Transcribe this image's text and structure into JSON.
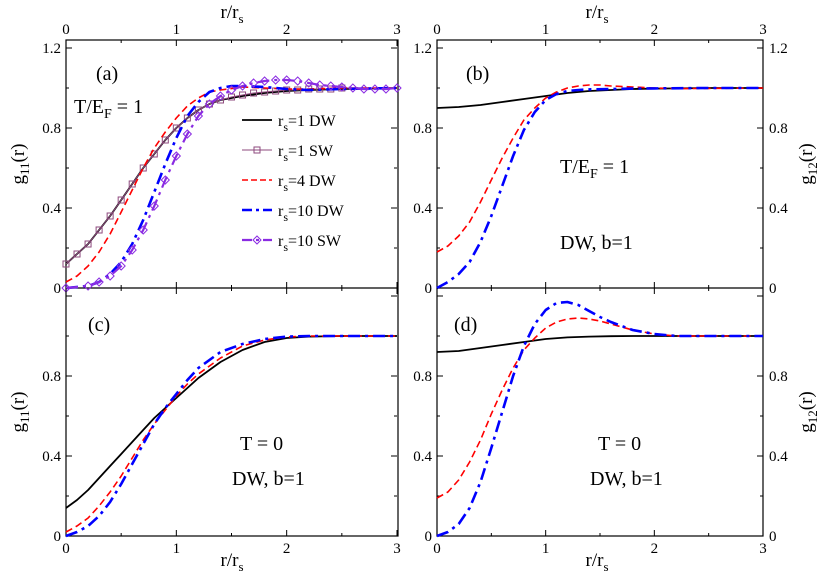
{
  "chart_data": {
    "type": "line",
    "figure": "Pair correlation functions g11(r) and g12(r) versus r/rs",
    "x_axis": {
      "label": "r/r",
      "label_sub": "s",
      "ticks": [
        "0",
        "1",
        "2",
        "3"
      ],
      "range": [
        0,
        3
      ]
    },
    "y_ticks": [
      "0",
      "0.4",
      "0.8",
      "1.2"
    ],
    "panels": [
      {
        "id": "a",
        "tag": "(a)",
        "ylabel": {
          "main": "g",
          "sub": "11",
          "tail": "(r)"
        },
        "ylim": [
          0,
          1.24
        ],
        "annotation": [
          "T/E",
          "F",
          " = 1"
        ],
        "legend": [
          {
            "pre": "r",
            "sub": "s",
            "post": "=1  DW"
          },
          {
            "pre": "r",
            "sub": "s",
            "post": "=1  SW"
          },
          {
            "pre": "r",
            "sub": "s",
            "post": "=4  DW"
          },
          {
            "pre": "r",
            "sub": "s",
            "post": "=10 DW"
          },
          {
            "pre": "r",
            "sub": "s",
            "post": "=10 SW"
          }
        ],
        "series": [
          {
            "name": "rs=1 DW",
            "color": "#000000",
            "style": "solid",
            "x": [
              0,
              0.1,
              0.2,
              0.3,
              0.4,
              0.5,
              0.6,
              0.7,
              0.8,
              0.9,
              1.0,
              1.1,
              1.2,
              1.3,
              1.4,
              1.6,
              1.8,
              2.0,
              2.2,
              2.5,
              3.0
            ],
            "y": [
              0.12,
              0.17,
              0.22,
              0.29,
              0.36,
              0.44,
              0.52,
              0.6,
              0.67,
              0.74,
              0.8,
              0.85,
              0.89,
              0.92,
              0.94,
              0.96,
              0.975,
              0.985,
              0.99,
              0.995,
              1.0
            ]
          },
          {
            "name": "rs=1 SW",
            "color": "#8e4a7e",
            "style": "thin",
            "marker": "square",
            "x": [
              0,
              0.1,
              0.2,
              0.3,
              0.4,
              0.5,
              0.6,
              0.7,
              0.8,
              0.9,
              1.0,
              1.1,
              1.2,
              1.3,
              1.4,
              1.5,
              1.6,
              1.7,
              1.8,
              1.9,
              2.0,
              2.1,
              2.2,
              2.3,
              2.4,
              2.5,
              2.6,
              2.7,
              2.8,
              2.9,
              3.0
            ],
            "y": [
              0.12,
              0.17,
              0.22,
              0.29,
              0.36,
              0.44,
              0.52,
              0.6,
              0.67,
              0.74,
              0.8,
              0.85,
              0.89,
              0.92,
              0.94,
              0.955,
              0.965,
              0.975,
              0.98,
              0.985,
              0.99,
              0.99,
              0.995,
              0.995,
              0.995,
              1.0,
              1.0,
              1.0,
              1.0,
              1.0,
              1.0
            ]
          },
          {
            "name": "rs=4 DW",
            "color": "#ff0000",
            "style": "dash",
            "x": [
              0,
              0.1,
              0.2,
              0.3,
              0.4,
              0.5,
              0.6,
              0.7,
              0.8,
              0.9,
              1.0,
              1.1,
              1.2,
              1.3,
              1.4,
              1.6,
              1.8,
              2.0,
              2.2,
              2.5,
              3.0
            ],
            "y": [
              0.03,
              0.06,
              0.11,
              0.18,
              0.27,
              0.38,
              0.49,
              0.6,
              0.7,
              0.78,
              0.85,
              0.91,
              0.95,
              0.98,
              0.99,
              1.005,
              1.0,
              0.995,
              0.995,
              1.0,
              1.0
            ]
          },
          {
            "name": "rs=10 DW",
            "color": "#0000ff",
            "style": "dashdot",
            "x": [
              0,
              0.2,
              0.3,
              0.4,
              0.5,
              0.6,
              0.7,
              0.8,
              0.9,
              1.0,
              1.1,
              1.2,
              1.3,
              1.4,
              1.5,
              1.6,
              1.8,
              2.0,
              2.2,
              2.5,
              3.0
            ],
            "y": [
              0.0,
              0.01,
              0.03,
              0.07,
              0.13,
              0.22,
              0.34,
              0.48,
              0.62,
              0.75,
              0.86,
              0.93,
              0.98,
              1.0,
              1.01,
              1.01,
              1.005,
              0.995,
              0.99,
              0.995,
              1.0
            ]
          },
          {
            "name": "rs=10 SW",
            "color": "#8a2be2",
            "style": "dashdot-thin",
            "marker": "diamond",
            "x": [
              0,
              0.2,
              0.3,
              0.4,
              0.5,
              0.6,
              0.7,
              0.8,
              0.9,
              1.0,
              1.1,
              1.2,
              1.3,
              1.4,
              1.5,
              1.6,
              1.7,
              1.8,
              1.9,
              2.0,
              2.1,
              2.2,
              2.3,
              2.4,
              2.5,
              2.6,
              2.7,
              2.8,
              2.9,
              3.0
            ],
            "y": [
              0.0,
              0.01,
              0.03,
              0.06,
              0.11,
              0.19,
              0.29,
              0.41,
              0.54,
              0.66,
              0.77,
              0.86,
              0.92,
              0.96,
              0.99,
              1.01,
              1.025,
              1.035,
              1.04,
              1.04,
              1.035,
              1.025,
              1.015,
              1.01,
              1.005,
              1.0,
              0.995,
              0.995,
              0.995,
              1.0
            ]
          }
        ]
      },
      {
        "id": "b",
        "tag": "(b)",
        "ylabel": {
          "main": "g",
          "sub": "12",
          "tail": "(r)"
        },
        "ylim": [
          0,
          1.24
        ],
        "annotation": [
          "T/E",
          "F",
          " = 1"
        ],
        "annotation2": "DW, b=1",
        "series": [
          {
            "name": "rs=1 DW",
            "color": "#000000",
            "style": "solid",
            "x": [
              0,
              0.2,
              0.4,
              0.6,
              0.8,
              1.0,
              1.2,
              1.4,
              1.6,
              1.8,
              2.0,
              2.5,
              3.0
            ],
            "y": [
              0.9,
              0.905,
              0.915,
              0.93,
              0.945,
              0.96,
              0.975,
              0.985,
              0.99,
              0.995,
              0.997,
              1.0,
              1.0
            ]
          },
          {
            "name": "rs=4 DW",
            "color": "#ff0000",
            "style": "dash",
            "x": [
              0,
              0.1,
              0.2,
              0.3,
              0.4,
              0.5,
              0.6,
              0.7,
              0.8,
              0.9,
              1.0,
              1.1,
              1.2,
              1.3,
              1.4,
              1.5,
              1.6,
              1.8,
              2.0,
              2.2,
              2.5,
              3.0
            ],
            "y": [
              0.18,
              0.21,
              0.26,
              0.33,
              0.43,
              0.54,
              0.65,
              0.75,
              0.84,
              0.9,
              0.95,
              0.98,
              1.0,
              1.01,
              1.015,
              1.015,
              1.01,
              1.005,
              1.0,
              0.997,
              0.998,
              1.0
            ]
          },
          {
            "name": "rs=10 DW",
            "color": "#0000ff",
            "style": "dashdot",
            "x": [
              0,
              0.1,
              0.2,
              0.3,
              0.4,
              0.5,
              0.6,
              0.7,
              0.8,
              0.9,
              1.0,
              1.1,
              1.2,
              1.3,
              1.4,
              1.6,
              1.8,
              2.0,
              2.5,
              3.0
            ],
            "y": [
              0.0,
              0.03,
              0.07,
              0.13,
              0.23,
              0.36,
              0.51,
              0.66,
              0.79,
              0.88,
              0.94,
              0.97,
              0.985,
              0.99,
              0.993,
              0.995,
              0.997,
              0.998,
              1.0,
              1.0
            ]
          }
        ]
      },
      {
        "id": "c",
        "tag": "(c)",
        "ylabel": {
          "main": "g",
          "sub": "11",
          "tail": "(r)"
        },
        "ylim": [
          0,
          1.24
        ],
        "annotation": [
          "T = 0"
        ],
        "annotation2": "DW, b=1",
        "series": [
          {
            "name": "rs=1 DW",
            "color": "#000000",
            "style": "solid",
            "x": [
              0,
              0.1,
              0.2,
              0.3,
              0.4,
              0.5,
              0.6,
              0.7,
              0.8,
              0.9,
              1.0,
              1.1,
              1.2,
              1.4,
              1.6,
              1.8,
              2.0,
              2.2,
              2.5,
              3.0
            ],
            "y": [
              0.14,
              0.18,
              0.23,
              0.29,
              0.35,
              0.41,
              0.47,
              0.53,
              0.59,
              0.64,
              0.69,
              0.74,
              0.79,
              0.87,
              0.93,
              0.97,
              0.99,
              0.997,
              1.0,
              1.0
            ]
          },
          {
            "name": "rs=4 DW",
            "color": "#ff0000",
            "style": "dash",
            "x": [
              0,
              0.1,
              0.2,
              0.3,
              0.4,
              0.5,
              0.6,
              0.7,
              0.8,
              0.9,
              1.0,
              1.1,
              1.2,
              1.4,
              1.6,
              1.8,
              2.0,
              2.2,
              2.5,
              3.0
            ],
            "y": [
              0.02,
              0.05,
              0.09,
              0.15,
              0.22,
              0.3,
              0.39,
              0.48,
              0.56,
              0.63,
              0.7,
              0.76,
              0.81,
              0.89,
              0.95,
              0.98,
              0.995,
              1.0,
              1.0,
              1.0
            ]
          },
          {
            "name": "rs=10 DW",
            "color": "#0000ff",
            "style": "dashdot",
            "x": [
              0,
              0.1,
              0.2,
              0.3,
              0.4,
              0.5,
              0.6,
              0.7,
              0.8,
              0.9,
              1.0,
              1.1,
              1.2,
              1.4,
              1.6,
              1.8,
              2.0,
              2.2,
              2.5,
              3.0
            ],
            "y": [
              0.0,
              0.02,
              0.05,
              0.1,
              0.17,
              0.26,
              0.36,
              0.46,
              0.56,
              0.64,
              0.71,
              0.78,
              0.84,
              0.92,
              0.96,
              0.985,
              0.997,
              1.0,
              1.0,
              1.0
            ]
          }
        ]
      },
      {
        "id": "d",
        "tag": "(d)",
        "ylabel": {
          "main": "g",
          "sub": "12",
          "tail": "(r)"
        },
        "ylim": [
          0,
          1.24
        ],
        "annotation": [
          "T = 0"
        ],
        "annotation2": "DW, b=1",
        "series": [
          {
            "name": "rs=1 DW",
            "color": "#000000",
            "style": "solid",
            "x": [
              0,
              0.2,
              0.4,
              0.6,
              0.8,
              1.0,
              1.2,
              1.4,
              1.6,
              1.8,
              2.0,
              2.5,
              3.0
            ],
            "y": [
              0.92,
              0.925,
              0.94,
              0.955,
              0.97,
              0.985,
              0.993,
              0.997,
              0.999,
              1.0,
              1.0,
              1.0,
              1.0
            ]
          },
          {
            "name": "rs=4 DW",
            "color": "#ff0000",
            "style": "dash",
            "x": [
              0,
              0.1,
              0.2,
              0.3,
              0.4,
              0.5,
              0.6,
              0.7,
              0.8,
              0.9,
              1.0,
              1.1,
              1.2,
              1.3,
              1.4,
              1.5,
              1.6,
              1.8,
              2.0,
              2.2,
              2.5,
              3.0
            ],
            "y": [
              0.19,
              0.22,
              0.28,
              0.37,
              0.48,
              0.61,
              0.73,
              0.84,
              0.93,
              0.99,
              1.04,
              1.07,
              1.085,
              1.09,
              1.085,
              1.075,
              1.06,
              1.03,
              1.01,
              1.0,
              1.0,
              1.0
            ]
          },
          {
            "name": "rs=10 DW",
            "color": "#0000ff",
            "style": "dashdot",
            "x": [
              0,
              0.1,
              0.2,
              0.3,
              0.4,
              0.5,
              0.6,
              0.7,
              0.8,
              0.9,
              1.0,
              1.1,
              1.2,
              1.3,
              1.4,
              1.5,
              1.6,
              1.8,
              2.0,
              2.2,
              2.5,
              3.0
            ],
            "y": [
              0.0,
              0.02,
              0.06,
              0.14,
              0.27,
              0.44,
              0.62,
              0.8,
              0.95,
              1.06,
              1.13,
              1.165,
              1.17,
              1.155,
              1.125,
              1.095,
              1.07,
              1.03,
              1.01,
              1.0,
              1.0,
              1.0
            ]
          }
        ]
      }
    ]
  }
}
